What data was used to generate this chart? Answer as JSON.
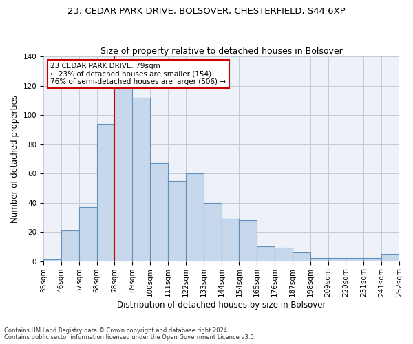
{
  "title1": "23, CEDAR PARK DRIVE, BOLSOVER, CHESTERFIELD, S44 6XP",
  "title2": "Size of property relative to detached houses in Bolsover",
  "xlabel": "Distribution of detached houses by size in Bolsover",
  "ylabel": "Number of detached properties",
  "bar_labels": [
    "35sqm",
    "46sqm",
    "57sqm",
    "68sqm",
    "78sqm",
    "89sqm",
    "100sqm",
    "111sqm",
    "122sqm",
    "133sqm",
    "144sqm",
    "154sqm",
    "165sqm",
    "176sqm",
    "187sqm",
    "198sqm",
    "209sqm",
    "220sqm",
    "231sqm",
    "241sqm",
    "252sqm"
  ],
  "bar_heights": [
    1,
    21,
    37,
    94,
    119,
    112,
    67,
    55,
    60,
    40,
    29,
    28,
    10,
    9,
    6,
    2,
    2,
    2,
    2,
    5
  ],
  "bar_color": "#c8d8ec",
  "bar_edge_color": "#6090bb",
  "property_line_x": 4.5,
  "annotation_text": "23 CEDAR PARK DRIVE: 79sqm\n← 23% of detached houses are smaller (154)\n76% of semi-detached houses are larger (506) →",
  "annotation_box_color": "#ffffff",
  "annotation_box_edge": "#cc0000",
  "property_line_color": "#cc0000",
  "ylim": [
    0,
    140
  ],
  "yticks": [
    0,
    20,
    40,
    60,
    80,
    100,
    120,
    140
  ],
  "footnote1": "Contains HM Land Registry data © Crown copyright and database right 2024.",
  "footnote2": "Contains public sector information licensed under the Open Government Licence v3.0.",
  "bg_color": "#ffffff",
  "plot_bg_color": "#eef2f8",
  "grid_color": "#c0ccd8",
  "title1_fontsize": 9.5,
  "title2_fontsize": 9,
  "axis_label_fontsize": 8.5,
  "tick_fontsize": 7.5
}
